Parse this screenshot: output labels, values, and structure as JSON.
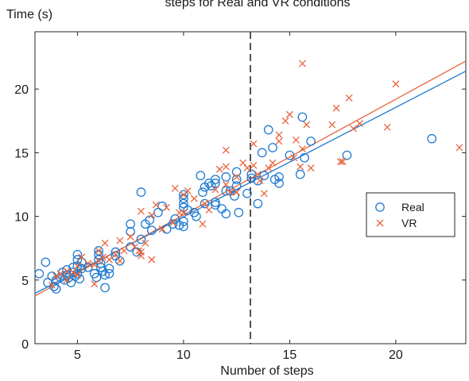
{
  "chart_data": {
    "type": "scatter",
    "title": "steps for Real and VR conditions",
    "xlabel": "Number of steps",
    "ylabel": "Time (s)",
    "xlim": [
      3,
      23.3
    ],
    "ylim": [
      0,
      24.5
    ],
    "xticks": [
      5,
      10,
      15,
      20
    ],
    "yticks": [
      0,
      5,
      10,
      15,
      20
    ],
    "grid": false,
    "legend_position": "right",
    "vertical_line_x": 13.15,
    "series": [
      {
        "name": "Real",
        "marker": "circle",
        "color": "#1f7bd1",
        "points": [
          [
            3.2,
            5.5
          ],
          [
            3.5,
            6.4
          ],
          [
            3.6,
            4.8
          ],
          [
            3.8,
            5.3
          ],
          [
            3.9,
            4.5
          ],
          [
            4.0,
            4.3
          ],
          [
            4.0,
            5.0
          ],
          [
            4.2,
            5.2
          ],
          [
            4.3,
            5.6
          ],
          [
            4.4,
            5.0
          ],
          [
            4.5,
            5.8
          ],
          [
            4.5,
            5.4
          ],
          [
            4.6,
            5.2
          ],
          [
            4.7,
            4.8
          ],
          [
            4.8,
            5.6
          ],
          [
            4.8,
            6.0
          ],
          [
            4.9,
            5.3
          ],
          [
            5.0,
            6.1
          ],
          [
            5.0,
            5.5
          ],
          [
            5.0,
            7.0
          ],
          [
            5.0,
            6.6
          ],
          [
            5.1,
            5.1
          ],
          [
            5.2,
            5.9
          ],
          [
            5.2,
            6.4
          ],
          [
            5.5,
            6.0
          ],
          [
            5.8,
            5.5
          ],
          [
            5.9,
            5.2
          ],
          [
            6.0,
            7.3
          ],
          [
            6.0,
            7.0
          ],
          [
            6.0,
            6.6
          ],
          [
            6.1,
            6.3
          ],
          [
            6.1,
            6.0
          ],
          [
            6.2,
            5.7
          ],
          [
            6.3,
            5.4
          ],
          [
            6.3,
            4.4
          ],
          [
            6.5,
            5.9
          ],
          [
            6.5,
            5.5
          ],
          [
            6.8,
            7.2
          ],
          [
            6.8,
            6.9
          ],
          [
            7.0,
            6.5
          ],
          [
            7.5,
            8.8
          ],
          [
            7.5,
            9.4
          ],
          [
            7.5,
            7.6
          ],
          [
            7.8,
            7.2
          ],
          [
            8.0,
            11.9
          ],
          [
            8.0,
            8.2
          ],
          [
            8.2,
            9.4
          ],
          [
            8.4,
            9.7
          ],
          [
            8.5,
            8.9
          ],
          [
            8.8,
            10.3
          ],
          [
            9.0,
            10.8
          ],
          [
            9.2,
            9.0
          ],
          [
            9.5,
            9.4
          ],
          [
            9.6,
            9.8
          ],
          [
            9.8,
            9.3
          ],
          [
            10.0,
            11.7
          ],
          [
            10.0,
            11.4
          ],
          [
            10.0,
            11.0
          ],
          [
            10.0,
            10.7
          ],
          [
            10.0,
            9.6
          ],
          [
            10.0,
            9.2
          ],
          [
            10.2,
            10.5
          ],
          [
            10.5,
            10.3
          ],
          [
            10.6,
            10.0
          ],
          [
            10.8,
            13.2
          ],
          [
            10.9,
            11.9
          ],
          [
            11.0,
            12.3
          ],
          [
            11.0,
            11.0
          ],
          [
            11.2,
            12.6
          ],
          [
            11.3,
            12.4
          ],
          [
            11.5,
            12.9
          ],
          [
            11.5,
            12.6
          ],
          [
            11.5,
            11.1
          ],
          [
            11.5,
            10.9
          ],
          [
            11.8,
            10.6
          ],
          [
            12.0,
            13.1
          ],
          [
            12.0,
            12.0
          ],
          [
            12.0,
            10.2
          ],
          [
            12.2,
            12.0
          ],
          [
            12.4,
            11.6
          ],
          [
            12.5,
            13.5
          ],
          [
            12.5,
            12.9
          ],
          [
            12.5,
            12.4
          ],
          [
            12.6,
            10.3
          ],
          [
            13.0,
            11.8
          ],
          [
            13.2,
            13.3
          ],
          [
            13.2,
            13.0
          ],
          [
            13.5,
            12.8
          ],
          [
            13.5,
            11.0
          ],
          [
            13.7,
            15.0
          ],
          [
            13.8,
            13.2
          ],
          [
            14.0,
            16.8
          ],
          [
            14.2,
            15.4
          ],
          [
            14.3,
            12.9
          ],
          [
            14.5,
            13.1
          ],
          [
            14.5,
            12.6
          ],
          [
            15.0,
            14.8
          ],
          [
            15.5,
            13.3
          ],
          [
            15.6,
            17.8
          ],
          [
            15.7,
            14.6
          ],
          [
            16.0,
            15.9
          ],
          [
            17.7,
            14.8
          ],
          [
            21.7,
            16.1
          ]
        ]
      },
      {
        "name": "VR",
        "marker": "cross",
        "color": "#e8643c",
        "points": [
          [
            3.8,
            4.6
          ],
          [
            4.0,
            5.3
          ],
          [
            4.2,
            5.5
          ],
          [
            4.5,
            5.0
          ],
          [
            4.5,
            5.7
          ],
          [
            4.8,
            5.6
          ],
          [
            5.0,
            5.4
          ],
          [
            5.0,
            6.1
          ],
          [
            5.2,
            6.8
          ],
          [
            5.5,
            6.3
          ],
          [
            5.8,
            6.2
          ],
          [
            5.8,
            4.7
          ],
          [
            6.0,
            6.5
          ],
          [
            6.0,
            7.3
          ],
          [
            6.2,
            6.8
          ],
          [
            6.3,
            7.9
          ],
          [
            6.5,
            6.6
          ],
          [
            6.8,
            7.0
          ],
          [
            7.0,
            8.1
          ],
          [
            7.0,
            6.5
          ],
          [
            7.2,
            7.3
          ],
          [
            7.5,
            8.4
          ],
          [
            7.7,
            7.6
          ],
          [
            7.9,
            7.3
          ],
          [
            8.0,
            10.4
          ],
          [
            8.0,
            6.9
          ],
          [
            8.0,
            7.2
          ],
          [
            8.2,
            7.9
          ],
          [
            8.5,
            6.6
          ],
          [
            8.5,
            10.1
          ],
          [
            8.7,
            10.9
          ],
          [
            9.0,
            9.0
          ],
          [
            9.2,
            10.7
          ],
          [
            9.5,
            9.5
          ],
          [
            9.6,
            12.2
          ],
          [
            9.8,
            10.3
          ],
          [
            10.0,
            11.7
          ],
          [
            10.0,
            10.3
          ],
          [
            10.2,
            12.0
          ],
          [
            10.5,
            11.4
          ],
          [
            10.9,
            9.4
          ],
          [
            11.0,
            11.0
          ],
          [
            11.2,
            10.5
          ],
          [
            11.5,
            12.1
          ],
          [
            11.7,
            13.7
          ],
          [
            12.0,
            15.2
          ],
          [
            12.0,
            13.9
          ],
          [
            12.0,
            12.5
          ],
          [
            12.2,
            11.9
          ],
          [
            12.5,
            11.9
          ],
          [
            12.5,
            13.1
          ],
          [
            12.8,
            14.2
          ],
          [
            13.0,
            13.8
          ],
          [
            13.3,
            15.7
          ],
          [
            13.3,
            14.0
          ],
          [
            13.5,
            13.3
          ],
          [
            13.6,
            12.8
          ],
          [
            13.8,
            11.8
          ],
          [
            14.0,
            13.8
          ],
          [
            14.2,
            14.2
          ],
          [
            14.5,
            16.4
          ],
          [
            14.5,
            15.9
          ],
          [
            14.8,
            17.5
          ],
          [
            15.0,
            18.0
          ],
          [
            15.2,
            14.6
          ],
          [
            15.3,
            16.0
          ],
          [
            15.5,
            13.9
          ],
          [
            15.6,
            22.0
          ],
          [
            15.6,
            15.3
          ],
          [
            15.8,
            17.2
          ],
          [
            16.0,
            13.8
          ],
          [
            17.0,
            17.2
          ],
          [
            17.2,
            18.5
          ],
          [
            17.4,
            14.3
          ],
          [
            17.5,
            14.3
          ],
          [
            17.8,
            19.3
          ],
          [
            18.0,
            16.9
          ],
          [
            18.3,
            17.3
          ],
          [
            19.6,
            17.0
          ],
          [
            20.0,
            20.4
          ],
          [
            23.0,
            15.4
          ]
        ]
      }
    ],
    "fit_lines": [
      {
        "series": "Real",
        "color": "#1f7bd1",
        "from": [
          3.0,
          3.95
        ],
        "to": [
          23.3,
          21.4
        ]
      },
      {
        "series": "VR",
        "color": "#e8643c",
        "from": [
          3.0,
          3.75
        ],
        "to": [
          23.3,
          22.2
        ]
      }
    ]
  }
}
